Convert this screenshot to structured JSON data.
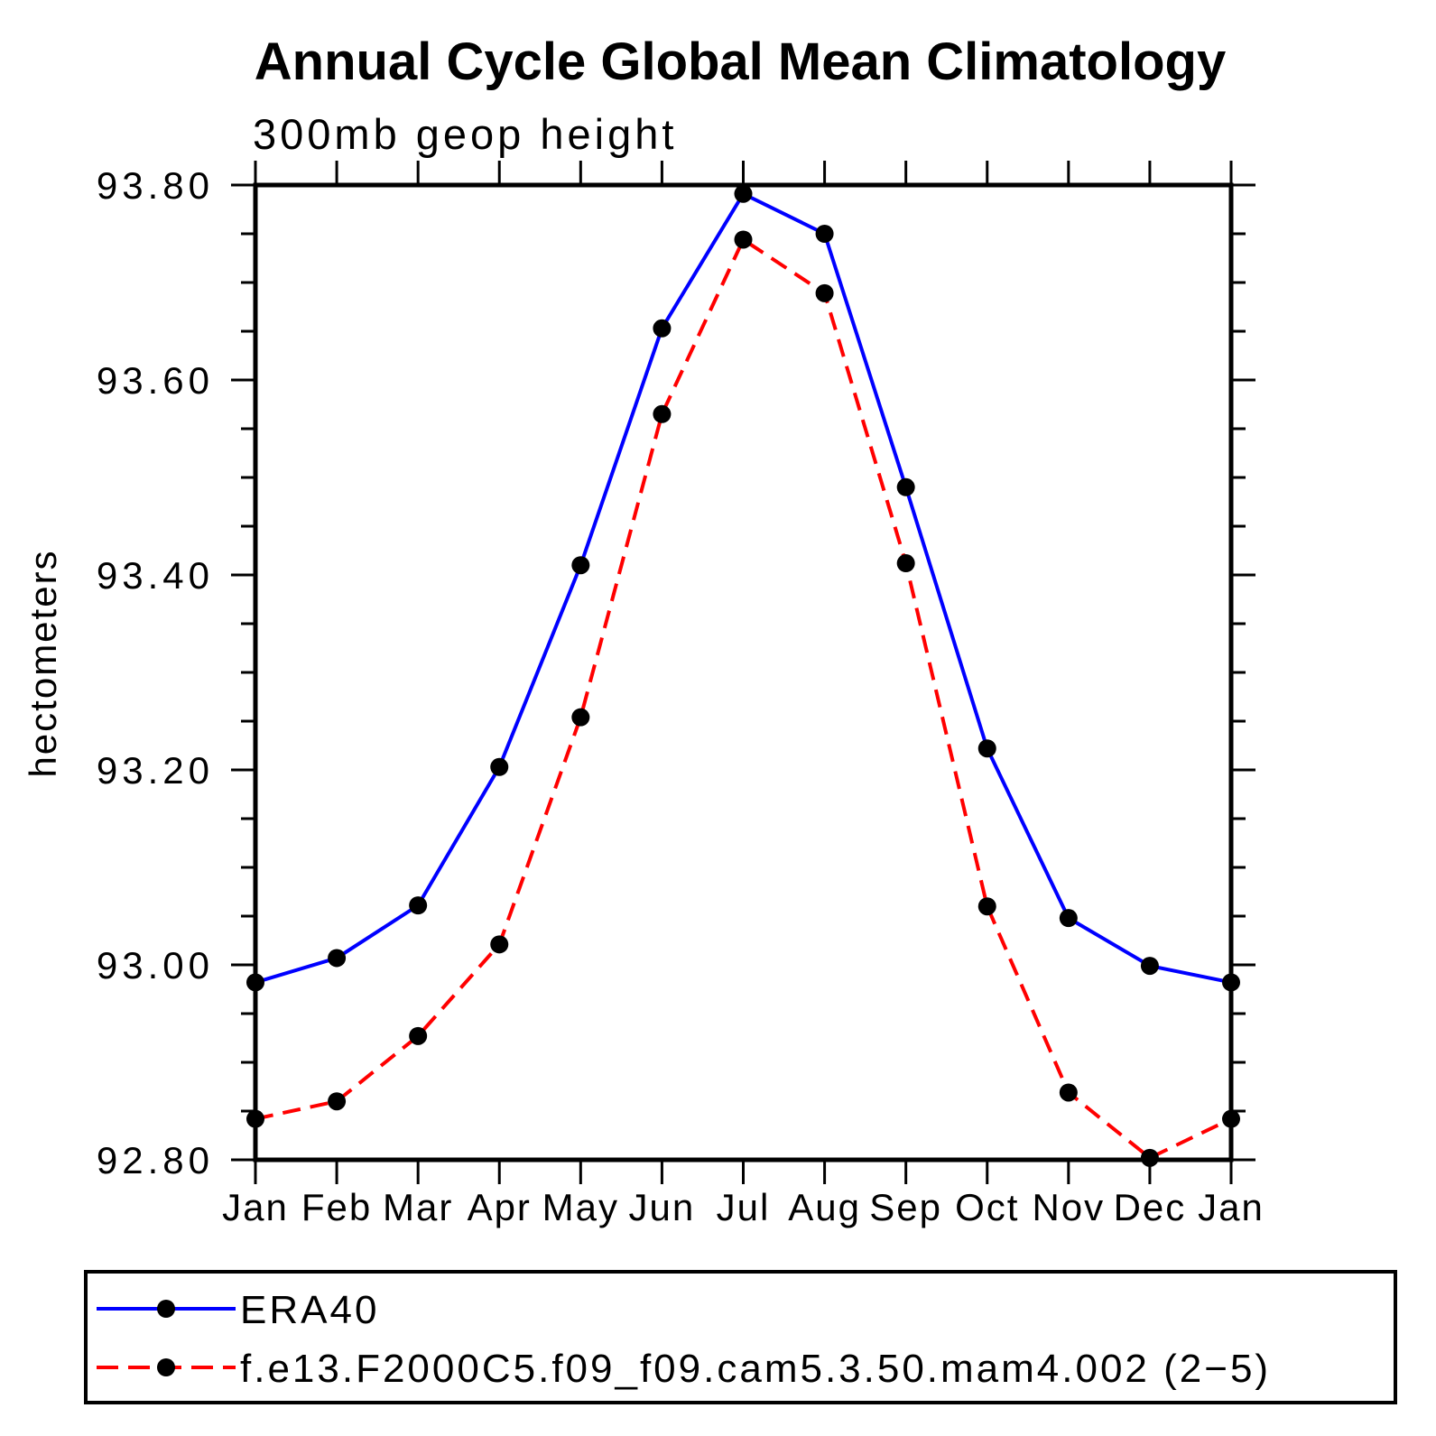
{
  "chart_data": {
    "type": "line",
    "title": "Annual Cycle Global Mean Climatology",
    "subtitle": "300mb geop height",
    "xlabel": "",
    "ylabel": "hectometers",
    "categories": [
      "Jan",
      "Feb",
      "Mar",
      "Apr",
      "May",
      "Jun",
      "Jul",
      "Aug",
      "Sep",
      "Oct",
      "Nov",
      "Dec",
      "Jan"
    ],
    "ylim": [
      92.8,
      93.8
    ],
    "ytick_major_values": [
      92.8,
      93.0,
      93.2,
      93.4,
      93.6,
      93.8
    ],
    "ytick_major_labels": [
      "92.80",
      "93.00",
      "93.20",
      "93.40",
      "93.60",
      "93.80"
    ],
    "ytick_minor_step": 0.05,
    "grid": false,
    "legend_position": "bottom-left-box",
    "series": [
      {
        "name": "ERA40",
        "color": "#0000ff",
        "line_style": "solid",
        "marker": "filled-circle",
        "marker_color": "#000000",
        "values": [
          92.982,
          93.007,
          93.061,
          93.203,
          93.41,
          93.653,
          93.791,
          93.75,
          93.49,
          93.222,
          93.048,
          92.999,
          92.982
        ]
      },
      {
        "name": "f.e13.F2000C5.f09_f09.cam5.3.50.mam4.002 (2−5)",
        "color": "#ff0000",
        "line_style": "dashed",
        "marker": "filled-circle",
        "marker_color": "#000000",
        "values": [
          92.842,
          92.86,
          92.927,
          93.021,
          93.254,
          93.565,
          93.744,
          93.689,
          93.412,
          93.06,
          92.869,
          92.802,
          92.842
        ]
      }
    ]
  },
  "colors": {
    "axis": "#000000",
    "background": "#ffffff",
    "series_blue": "#0000ff",
    "series_red": "#ff0000",
    "marker": "#000000"
  }
}
